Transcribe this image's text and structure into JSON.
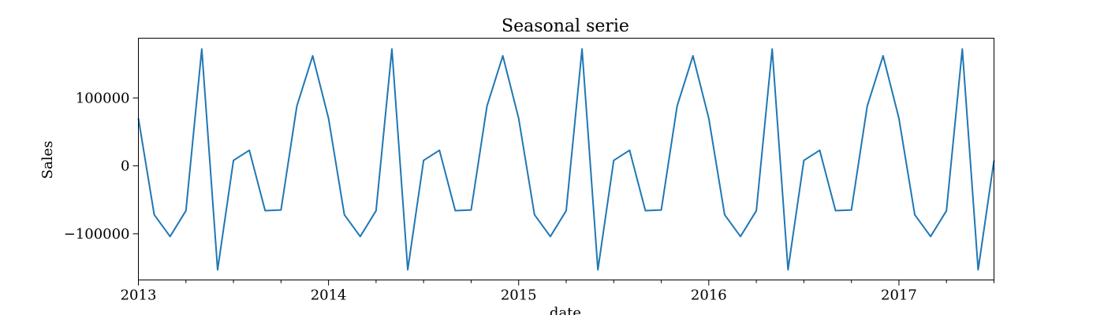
{
  "chart_data": {
    "type": "line",
    "title": "Seasonal serie",
    "xlabel": "date",
    "ylabel": "Sales",
    "grid": false,
    "x_range": [
      "2013-01",
      "2017-07"
    ],
    "ylim": [
      -168000,
      188000
    ],
    "x_ticks": [
      {
        "date": "2013-01",
        "label": "2013"
      },
      {
        "date": "2014-01",
        "label": "2014"
      },
      {
        "date": "2015-01",
        "label": "2015"
      },
      {
        "date": "2016-01",
        "label": "2016"
      },
      {
        "date": "2017-01",
        "label": "2017"
      }
    ],
    "y_ticks": [
      {
        "value": 100000,
        "label": "100000"
      },
      {
        "value": 0,
        "label": "0"
      },
      {
        "value": -100000,
        "label": "−100000"
      }
    ],
    "series": [
      {
        "color": "#1f77b4",
        "x": [
          "2013-01",
          "2013-02",
          "2013-03",
          "2013-04",
          "2013-05",
          "2013-06",
          "2013-07",
          "2013-08",
          "2013-09",
          "2013-10",
          "2013-11",
          "2013-12",
          "2014-01",
          "2014-02",
          "2014-03",
          "2014-04",
          "2014-05",
          "2014-06",
          "2014-07",
          "2014-08",
          "2014-09",
          "2014-10",
          "2014-11",
          "2014-12",
          "2015-01",
          "2015-02",
          "2015-03",
          "2015-04",
          "2015-05",
          "2015-06",
          "2015-07",
          "2015-08",
          "2015-09",
          "2015-10",
          "2015-11",
          "2015-12",
          "2016-01",
          "2016-02",
          "2016-03",
          "2016-04",
          "2016-05",
          "2016-06",
          "2016-07",
          "2016-08",
          "2016-09",
          "2016-10",
          "2016-11",
          "2016-12",
          "2017-01",
          "2017-02",
          "2017-03",
          "2017-04",
          "2017-05",
          "2017-06",
          "2017-07"
        ],
        "values": [
          70000,
          -72000,
          -104000,
          -66000,
          172000,
          -153000,
          8000,
          23000,
          -66000,
          -65000,
          88000,
          162000,
          70000,
          -72000,
          -104000,
          -66000,
          172000,
          -153000,
          8000,
          23000,
          -66000,
          -65000,
          88000,
          162000,
          70000,
          -72000,
          -104000,
          -66000,
          172000,
          -153000,
          8000,
          23000,
          -66000,
          -65000,
          88000,
          162000,
          70000,
          -72000,
          -104000,
          -66000,
          172000,
          -153000,
          8000,
          23000,
          -66000,
          -65000,
          88000,
          162000,
          70000,
          -72000,
          -104000,
          -66000,
          172000,
          -153000,
          8000
        ]
      }
    ]
  }
}
